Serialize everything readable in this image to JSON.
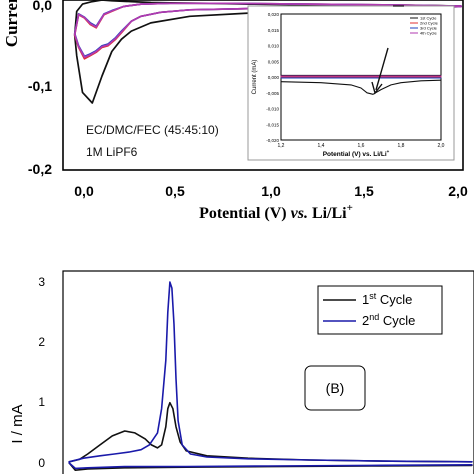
{
  "chart_data": [
    {
      "type": "line",
      "panel": "A",
      "ylabel_visible": "Current",
      "xlabel_parts": [
        "Potential (V) ",
        "vs.",
        " Li/Li",
        "+"
      ],
      "x_ticks": [
        "0,0",
        "0,5",
        "1,0",
        "1,5",
        "2,0"
      ],
      "y_ticks": [
        "0,0",
        "-0,1",
        "-0,2"
      ],
      "xlim": [
        -0.05,
        2.0
      ],
      "ylim": [
        -0.2,
        0.008
      ],
      "annotation_lines": [
        "EC/DMC/FEC (45:45:10)",
        "1M LiPF6"
      ],
      "series": [
        {
          "color": "#111111",
          "x": [
            1.99,
            1.8,
            1.5,
            1.2,
            0.9,
            0.6,
            0.4,
            0.3,
            0.25,
            0.2,
            0.15,
            0.1,
            0.05,
            0.02,
            0.01,
            0.02,
            0.05,
            0.1,
            0.15,
            0.2,
            0.3,
            0.4,
            0.5,
            0.7,
            0.9,
            1.2,
            1.5,
            1.8,
            1.99
          ],
          "y": [
            0.0,
            -0.002,
            -0.004,
            -0.006,
            -0.008,
            -0.012,
            -0.02,
            -0.03,
            -0.04,
            -0.055,
            -0.085,
            -0.118,
            -0.105,
            -0.06,
            -0.035,
            -0.006,
            0.003,
            0.006,
            0.008,
            0.007,
            0.006,
            0.005,
            0.0045,
            0.004,
            0.003,
            0.002,
            0.002,
            0.0015,
            0.0005
          ]
        },
        {
          "color": "#e03030",
          "x": [
            1.99,
            1.5,
            1.0,
            0.6,
            0.45,
            0.35,
            0.3,
            0.25,
            0.22,
            0.18,
            0.15,
            0.12,
            0.09,
            0.06,
            0.03,
            0.01,
            0.03,
            0.06,
            0.09,
            0.12,
            0.16,
            0.2,
            0.26,
            0.35,
            0.5,
            0.8,
            1.2,
            1.6,
            1.99
          ],
          "y": [
            0.0,
            -0.001,
            -0.002,
            -0.004,
            -0.007,
            -0.012,
            -0.018,
            -0.032,
            -0.04,
            -0.048,
            -0.05,
            -0.056,
            -0.06,
            -0.064,
            -0.05,
            -0.035,
            -0.01,
            -0.014,
            -0.022,
            -0.026,
            -0.01,
            -0.006,
            0.0,
            0.003,
            0.004,
            0.004,
            0.003,
            0.002,
            0.0005
          ]
        },
        {
          "color": "#1f3fbf",
          "x": [
            1.99,
            1.5,
            1.0,
            0.6,
            0.45,
            0.35,
            0.3,
            0.25,
            0.22,
            0.18,
            0.15,
            0.12,
            0.09,
            0.06,
            0.03,
            0.01,
            0.03,
            0.06,
            0.09,
            0.12,
            0.16,
            0.2,
            0.26,
            0.35,
            0.5,
            0.8,
            1.2,
            1.6,
            1.99
          ],
          "y": [
            0.0,
            -0.001,
            -0.002,
            -0.004,
            -0.007,
            -0.012,
            -0.018,
            -0.03,
            -0.038,
            -0.046,
            -0.048,
            -0.054,
            -0.058,
            -0.061,
            -0.048,
            -0.033,
            -0.009,
            -0.013,
            -0.02,
            -0.024,
            -0.009,
            -0.005,
            0.0,
            0.003,
            0.004,
            0.004,
            0.003,
            0.002,
            0.0005
          ]
        },
        {
          "color": "#b03ab0",
          "x": [
            1.99,
            1.5,
            1.0,
            0.6,
            0.45,
            0.35,
            0.3,
            0.25,
            0.22,
            0.18,
            0.15,
            0.12,
            0.09,
            0.06,
            0.03,
            0.01,
            0.03,
            0.06,
            0.09,
            0.12,
            0.16,
            0.2,
            0.26,
            0.35,
            0.5,
            0.8,
            1.2,
            1.6,
            1.99
          ],
          "y": [
            0.0,
            -0.001,
            -0.002,
            -0.004,
            -0.007,
            -0.012,
            -0.018,
            -0.031,
            -0.039,
            -0.047,
            -0.049,
            -0.055,
            -0.059,
            -0.062,
            -0.049,
            -0.034,
            -0.0095,
            -0.0135,
            -0.021,
            -0.025,
            -0.0095,
            -0.0055,
            0.0,
            0.003,
            0.004,
            0.004,
            0.003,
            0.002,
            0.0005
          ]
        }
      ],
      "inset": {
        "ylabel": "Current (mA)",
        "xlabel": "Potential (V) vs. Li/Li",
        "xlabel_sup": "+",
        "x_ticks": [
          "1,2",
          "1,4",
          "1,6",
          "1,8",
          "2,0"
        ],
        "xlim": [
          1.2,
          2.0
        ],
        "y_ticks": [
          "0,020",
          "0,015",
          "0,010",
          "0,005",
          "0,000",
          "-0,005",
          "-0,010",
          "-0,015",
          "-0,020"
        ],
        "ylim": [
          -0.02,
          0.02
        ],
        "legend": [
          {
            "label": "1st Cycle",
            "color": "#111111"
          },
          {
            "label": "2nd Cycle",
            "color": "#e03030"
          },
          {
            "label": "3rd Cycle",
            "color": "#1f3fbf"
          },
          {
            "label": "4th Cycle",
            "color": "#b03ab0"
          }
        ],
        "series": [
          {
            "color": "#111111",
            "x": [
              1.2,
              1.4,
              1.55,
              1.6,
              1.63,
              1.66,
              1.7,
              1.75,
              1.8,
              1.9,
              2.0
            ],
            "y": [
              -0.0015,
              -0.0018,
              -0.0025,
              -0.0035,
              -0.005,
              -0.0055,
              -0.004,
              -0.0025,
              -0.0018,
              -0.0012,
              -0.001
            ]
          },
          {
            "color": "#111111",
            "x": [
              1.2,
              2.0
            ],
            "y": [
              0.0005,
              0.0005
            ]
          },
          {
            "color": "#e03030",
            "x": [
              1.2,
              2.0
            ],
            "y": [
              0.0,
              0.0
            ]
          },
          {
            "color": "#1f3fbf",
            "x": [
              1.2,
              2.0
            ],
            "y": [
              -0.0003,
              -0.0003
            ]
          },
          {
            "color": "#b03ab0",
            "x": [
              1.2,
              2.0
            ],
            "y": [
              0.0003,
              0.0003
            ]
          }
        ]
      }
    },
    {
      "type": "line",
      "panel": "B",
      "panel_label": "(B)",
      "ylabel": "I / mA",
      "y_ticks": [
        "3",
        "2",
        "1",
        "0"
      ],
      "ylim": [
        -0.2,
        3.2
      ],
      "xlim": [
        0.0,
        2.0
      ],
      "legend": [
        {
          "label": "1",
          "sup": "st",
          "rest": " Cycle",
          "color": "#111111"
        },
        {
          "label": "2",
          "sup": "nd",
          "rest": " Cycle",
          "color": "#1a1aaa"
        }
      ],
      "series": [
        {
          "color": "#111111",
          "x": [
            0.03,
            0.08,
            0.12,
            0.18,
            0.24,
            0.3,
            0.35,
            0.4,
            0.43,
            0.46,
            0.48,
            0.5,
            0.51,
            0.52,
            0.535,
            0.55,
            0.57,
            0.6,
            0.7,
            0.9,
            1.2,
            1.6,
            1.99
          ],
          "y": [
            0.02,
            0.06,
            0.15,
            0.3,
            0.45,
            0.53,
            0.5,
            0.4,
            0.3,
            0.25,
            0.3,
            0.6,
            0.9,
            1.0,
            0.9,
            0.6,
            0.35,
            0.2,
            0.12,
            0.08,
            0.05,
            0.03,
            0.02
          ]
        },
        {
          "color": "#111111",
          "x": [
            1.99,
            1.5,
            1.0,
            0.6,
            0.3,
            0.12,
            0.06,
            0.03
          ],
          "y": [
            -0.04,
            -0.05,
            -0.06,
            -0.07,
            -0.08,
            -0.1,
            -0.12,
            0.0
          ]
        },
        {
          "color": "#1a1aaa",
          "x": [
            0.03,
            0.1,
            0.18,
            0.25,
            0.32,
            0.38,
            0.42,
            0.46,
            0.48,
            0.5,
            0.51,
            0.52,
            0.53,
            0.54,
            0.55,
            0.56,
            0.58,
            0.62,
            0.7,
            0.9,
            1.2,
            1.6,
            1.99
          ],
          "y": [
            0.02,
            0.08,
            0.12,
            0.15,
            0.18,
            0.22,
            0.3,
            0.5,
            0.9,
            1.7,
            2.5,
            3.0,
            2.9,
            2.3,
            1.4,
            0.7,
            0.3,
            0.15,
            0.1,
            0.07,
            0.05,
            0.03,
            0.02
          ]
        },
        {
          "color": "#1a1aaa",
          "x": [
            1.99,
            1.5,
            1.0,
            0.6,
            0.3,
            0.12,
            0.06,
            0.03
          ],
          "y": [
            -0.03,
            -0.04,
            -0.05,
            -0.06,
            -0.06,
            -0.08,
            -0.09,
            0.0
          ]
        }
      ]
    }
  ]
}
